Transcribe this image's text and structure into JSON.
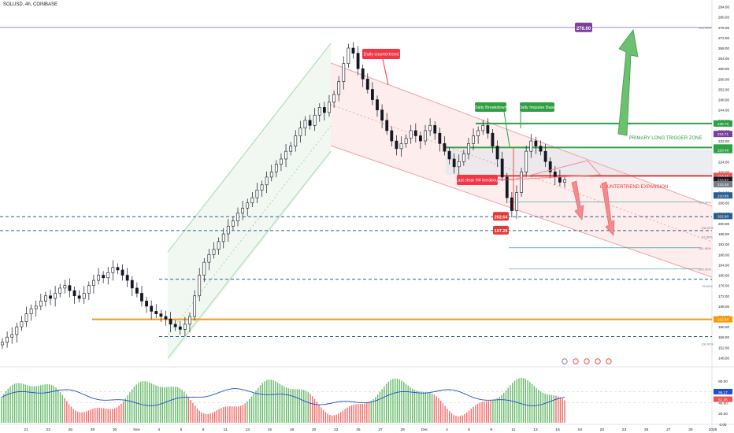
{
  "symbol_header": "SOLUSD, 4h, COINBASE",
  "colors": {
    "up": "#26a69a",
    "down": "#ef5350",
    "channel_green": "#a7d7ad",
    "channel_red": "#f3a1a5",
    "bg_red": "#fde8e9",
    "bg_green": "#eef7ef",
    "trigger_green": "#2ea043",
    "orange": "#ff9800",
    "purple": "#7b3fa0",
    "dashed_blue": "#2a5d8f",
    "teal_line": "#26a69a",
    "blue_line": "#1e4ec8"
  },
  "price_axis": {
    "ticks": [
      "284.00",
      "280.00",
      "276.00",
      "272.00",
      "268.00",
      "264.00",
      "260.00",
      "256.00",
      "252.00",
      "248.00",
      "244.00",
      "240.00",
      "236.00",
      "232.00",
      "228.00",
      "224.00",
      "220.00",
      "216.00",
      "212.00",
      "208.00",
      "204.00",
      "200.00",
      "196.00",
      "192.00",
      "188.00",
      "184.00",
      "180.00",
      "176.00",
      "172.00",
      "168.00",
      "164.00",
      "160.00",
      "156.00",
      "152.00",
      "148.00"
    ],
    "badges": [
      {
        "label": "238.76",
        "color": "#2ea043",
        "price": 238.76
      },
      {
        "label": "234.71",
        "color": "#7b3fa0",
        "price": 234.71
      },
      {
        "label": "229.47",
        "color": "#2ea043",
        "price": 229.47
      },
      {
        "label": "228.48",
        "color": "#2ea043",
        "price": 228.48
      },
      {
        "label": "218.48",
        "color": "#ef5350",
        "price": 218.48
      },
      {
        "label": "216.87",
        "color": "#131722",
        "price": 216.87
      },
      {
        "label": "215.26",
        "color": "#787b86",
        "price": 215.26
      },
      {
        "label": "210.89",
        "color": "#2a5d8f",
        "price": 210.89
      },
      {
        "label": "202.90",
        "color": "#2a5d8f",
        "price": 202.9
      },
      {
        "label": "162.88",
        "color": "#ff9800",
        "price": 162.88
      }
    ]
  },
  "time_axis": {
    "ticks": [
      "21",
      "23",
      "25",
      "28",
      "30",
      "Nov",
      "4",
      "6",
      "8",
      "11",
      "13",
      "15",
      "18",
      "20",
      "22",
      "25",
      "27",
      "29",
      "Dec",
      "4",
      "6",
      "9",
      "11",
      "13",
      "16",
      "18",
      "20",
      "23",
      "25",
      "27",
      "30",
      "2025"
    ]
  },
  "annotations": {
    "daily_countertrend": "Daily countertrend",
    "daily_breakdown": "Daily Breakdown",
    "daily_impulse_base": "Daily Impulse Base",
    "primary_long_trigger_zone": "PRIMARY LONG TRIGGER ZONE",
    "countertrend_expansion": "COUNTERTREND EXPANSION",
    "last_clear_h4_breakout": "Last clear H4 breakout",
    "target_276": "276.00",
    "level_202": "202.64",
    "level_197": "197.28",
    "pct_0": "100.00%",
    "pct_100_top": "100.00%",
    "fib_100": "100.00%",
    "fib_123": "123.60%",
    "fib_138": "138.20%",
    "fib_161": "161.80%",
    "fib_61": "61.80%",
    "fib_200": "200.00%",
    "fib_78": "78.60%",
    "fib_100_bottom": "100.00%"
  },
  "oscillator": {
    "ticks": [
      "80.00",
      "60.00",
      "40.00",
      "20.00",
      "0.00"
    ],
    "badges": [
      {
        "label": "55.17",
        "color": "#1e4ec8",
        "value": 55.17
      },
      {
        "label": "51.35",
        "color": "#ef5350",
        "value": 51.35
      }
    ]
  },
  "chart_data": {
    "type": "candlestick",
    "symbol": "SOLUSD",
    "timeframe": "4h",
    "exchange": "COINBASE",
    "ylim": [
      146,
      286
    ],
    "key_levels": [
      {
        "price": 276.0,
        "label": "276.00"
      },
      {
        "price": 238.76,
        "label": ""
      },
      {
        "price": 229.47,
        "label": ""
      },
      {
        "price": 218.48,
        "label": ""
      },
      {
        "price": 202.64,
        "label": "202.64"
      },
      {
        "price": 197.28,
        "label": "197.28"
      },
      {
        "price": 162.88,
        "label": ""
      }
    ],
    "candles_close": [
      154,
      156,
      157,
      160,
      162,
      165,
      167,
      168,
      170,
      172,
      171,
      173,
      175,
      176,
      174,
      172,
      171,
      173,
      176,
      178,
      180,
      179,
      181,
      183,
      182,
      180,
      178,
      175,
      173,
      170,
      168,
      166,
      165,
      164,
      163,
      161,
      160,
      159,
      161,
      164,
      172,
      180,
      185,
      188,
      190,
      193,
      196,
      199,
      201,
      204,
      206,
      208,
      210,
      213,
      215,
      218,
      220,
      223,
      225,
      228,
      230,
      234,
      237,
      240,
      238,
      242,
      245,
      243,
      247,
      250,
      255,
      262,
      268,
      266,
      260,
      256,
      252,
      248,
      244,
      240,
      236,
      232,
      229,
      231,
      233,
      236,
      234,
      232,
      236,
      238,
      235,
      231,
      228,
      225,
      222,
      224,
      227,
      231,
      234,
      236,
      238,
      235,
      230,
      225,
      218,
      210,
      205,
      212,
      220,
      228,
      232,
      230,
      228,
      224,
      220,
      218,
      216,
      217
    ]
  }
}
